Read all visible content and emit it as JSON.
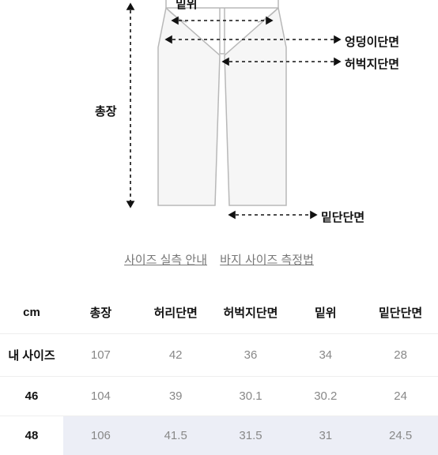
{
  "diagram": {
    "labels": {
      "rise": "밑위",
      "hip": "엉덩이단면",
      "thigh": "허벅지단면",
      "length": "총장",
      "hem": "밑단단면"
    },
    "colors": {
      "outline": "#b8b8b8",
      "fill": "#f6f6f6",
      "measure": "#111111"
    }
  },
  "links": {
    "size_guide": "사이즈 실측 안내",
    "measure_guide": "바지 사이즈 측정법"
  },
  "table": {
    "unit": "cm",
    "columns": [
      "총장",
      "허리단면",
      "허벅지단면",
      "밑위",
      "밑단단면"
    ],
    "rows": [
      {
        "label": "내 사이즈",
        "values": [
          "107",
          "42",
          "36",
          "34",
          "28"
        ],
        "highlight": false
      },
      {
        "label": "46",
        "values": [
          "104",
          "39",
          "30.1",
          "30.2",
          "24"
        ],
        "highlight": false
      },
      {
        "label": "48",
        "values": [
          "106",
          "41.5",
          "31.5",
          "31",
          "24.5"
        ],
        "highlight": true
      }
    ],
    "header_color": "#111111",
    "value_color": "#888888",
    "highlight_bg": "#eceef6",
    "border_color": "#eeeeee"
  }
}
